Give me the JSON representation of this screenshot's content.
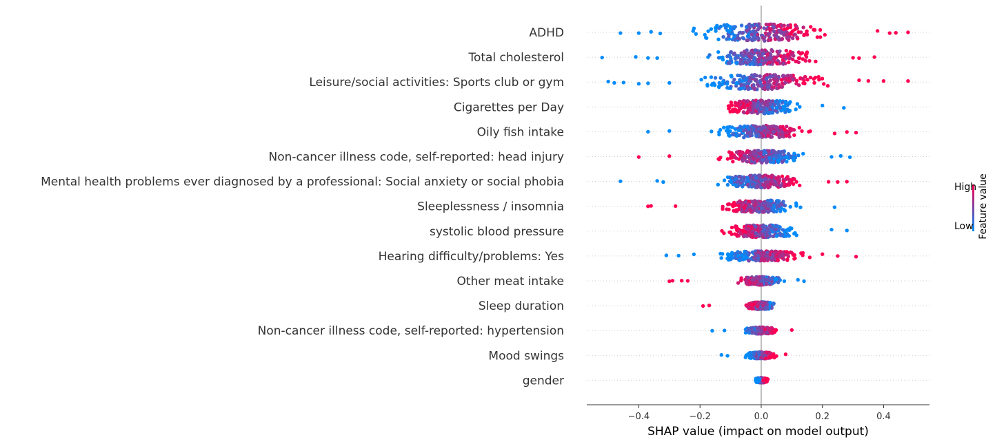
{
  "chart_data": {
    "type": "scatter",
    "subtype": "shap-beeswarm",
    "title": "",
    "xlabel": "SHAP value (impact on model output)",
    "ylabel": "",
    "xlim": [
      -0.57,
      0.55
    ],
    "xticks": [
      -0.4,
      -0.2,
      0.0,
      0.2,
      0.4
    ],
    "xtick_labels": [
      "−0.4",
      "−0.2",
      "0.0",
      "0.2",
      "0.4"
    ],
    "grid": false,
    "legend": {
      "type": "colorbar",
      "placement": "right",
      "title": "Feature value",
      "high_label": "High",
      "low_label": "Low",
      "high_color": "#ff0052",
      "low_color": "#008bfb"
    },
    "features": [
      {
        "name": "ADHD",
        "min": -0.46,
        "max": 0.48,
        "spread": 1.0,
        "pos_high": true,
        "outliers": [
          -0.46,
          -0.4,
          -0.36,
          -0.33,
          0.38,
          0.42,
          0.44,
          0.48
        ]
      },
      {
        "name": "Total cholesterol",
        "min": -0.52,
        "max": 0.37,
        "spread": 0.85,
        "pos_high": true,
        "outliers": [
          -0.52,
          -0.41,
          -0.37,
          -0.34,
          0.3,
          0.32,
          0.37
        ]
      },
      {
        "name": "Leisure/social activities: Sports club or gym",
        "min": -0.5,
        "max": 0.48,
        "spread": 0.85,
        "pos_high": true,
        "outliers": [
          -0.5,
          -0.48,
          -0.45,
          -0.4,
          -0.37,
          -0.3,
          0.32,
          0.35,
          0.4,
          0.48
        ]
      },
      {
        "name": "Cigarettes per Day",
        "min": -0.27,
        "max": 0.27,
        "spread": 0.75,
        "pos_high": false,
        "outliers": [
          0.2,
          0.27
        ]
      },
      {
        "name": "Oily fish intake",
        "min": -0.37,
        "max": 0.31,
        "spread": 0.7,
        "pos_high": true,
        "outliers": [
          -0.37,
          -0.3,
          0.24,
          0.28,
          0.31
        ]
      },
      {
        "name": "Non-cancer illness code, self-reported: head injury",
        "min": -0.4,
        "max": 0.29,
        "spread": 0.7,
        "pos_high": false,
        "outliers": [
          -0.4,
          -0.3,
          0.23,
          0.26,
          0.29
        ]
      },
      {
        "name": "Mental health problems ever diagnosed by a professional: Social anxiety or social phobia",
        "min": -0.46,
        "max": 0.28,
        "spread": 0.7,
        "pos_high": true,
        "outliers": [
          -0.46,
          -0.34,
          -0.32,
          0.22,
          0.25,
          0.28
        ]
      },
      {
        "name": "Sleeplessness / insomnia",
        "min": -0.37,
        "max": 0.24,
        "spread": 0.7,
        "pos_high": false,
        "outliers": [
          -0.37,
          -0.36,
          -0.28,
          0.24
        ]
      },
      {
        "name": "systolic blood pressure",
        "min": -0.27,
        "max": 0.28,
        "spread": 0.7,
        "pos_high": false,
        "outliers": [
          0.23,
          0.28
        ]
      },
      {
        "name": "Hearing difficulty/problems: Yes",
        "min": -0.31,
        "max": 0.31,
        "spread": 0.55,
        "pos_high": true,
        "outliers": [
          -0.31,
          -0.27,
          -0.22,
          0.2,
          0.25,
          0.31
        ]
      },
      {
        "name": "Other meat intake",
        "min": -0.3,
        "max": 0.14,
        "spread": 0.45,
        "pos_high": false,
        "outliers": [
          -0.3,
          -0.29,
          -0.26,
          -0.24,
          0.12,
          0.14
        ]
      },
      {
        "name": "Sleep duration",
        "min": -0.19,
        "max": 0.08,
        "spread": 0.4,
        "pos_high": false,
        "outliers": [
          -0.19,
          -0.17
        ]
      },
      {
        "name": "Non-cancer illness code, self-reported: hypertension",
        "min": -0.16,
        "max": 0.1,
        "spread": 0.35,
        "pos_high": true,
        "outliers": [
          -0.16,
          -0.12,
          0.1
        ]
      },
      {
        "name": "Mood swings",
        "min": -0.13,
        "max": 0.08,
        "spread": 0.35,
        "pos_high": true,
        "outliers": [
          -0.13,
          -0.11,
          0.08
        ]
      },
      {
        "name": "gender",
        "min": -0.02,
        "max": 0.025,
        "spread": 0.25,
        "pos_high": true,
        "outliers": []
      }
    ]
  }
}
